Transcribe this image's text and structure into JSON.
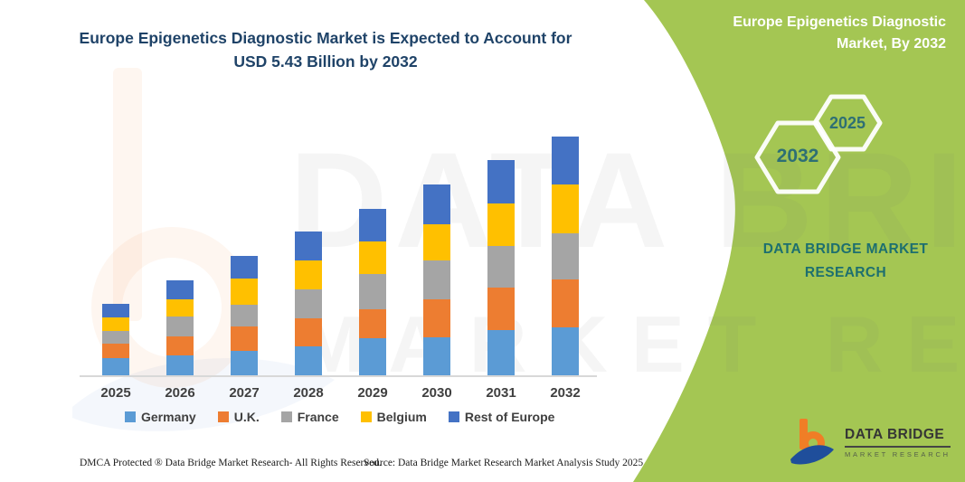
{
  "header": {
    "title_line1": "Europe Epigenetics Diagnostic Market is Expected to Account for",
    "title_line2": "USD 5.43 Billion by 2032",
    "panel_title_line1": "Europe Epigenetics Diagnostic",
    "panel_title_line2": "Market, By 2032"
  },
  "side_panel": {
    "hexagon_back_year": "2032",
    "hexagon_front_year": "2025",
    "brand_line1": "DATA BRIDGE MARKET",
    "brand_line2": "RESEARCH"
  },
  "watermark": {
    "line1": "DATA BRIDGE",
    "line2": "MARKET RESEARCH"
  },
  "logo": {
    "name": "DATA BRIDGE",
    "subtitle": "MARKET RESEARCH"
  },
  "footer": {
    "left": "DMCA Protected ® Data Bridge Market Research-  All Rights Reserved.",
    "right": "Source: Data Bridge Market Research  Market Analysis Study 2025"
  },
  "colors": {
    "panel_green": "#A4C653",
    "title_blue": "#1F4368",
    "brand_teal": "#1D6F6F",
    "hexagon_text_teal": "#2E6F74",
    "axis_text": "#3F3F3F",
    "axis_line": "#D8D8D8",
    "logo_orange": "#F07E26",
    "logo_blue": "#1F4E9B"
  },
  "chart_data": {
    "type": "bar",
    "stacked": true,
    "title": "Europe Epigenetics Diagnostic Market is Expected to Account for USD 5.43 Billion by 2032",
    "xlabel": "",
    "ylabel": "",
    "unit": "USD Billion (values estimated from bar heights; no y-axis shown)",
    "grid": false,
    "y_axis_visible": false,
    "legend_position": "bottom",
    "categories": [
      "2025",
      "2026",
      "2027",
      "2028",
      "2029",
      "2030",
      "2031",
      "2032"
    ],
    "series": [
      {
        "name": "Germany",
        "color": "#5B9BD5",
        "values": [
          0.39,
          0.45,
          0.56,
          0.66,
          0.84,
          0.86,
          1.03,
          1.09
        ]
      },
      {
        "name": "U.K.",
        "color": "#ED7D31",
        "values": [
          0.33,
          0.43,
          0.56,
          0.64,
          0.66,
          0.86,
          0.97,
          1.09
        ]
      },
      {
        "name": "France",
        "color": "#A5A5A5",
        "values": [
          0.29,
          0.45,
          0.49,
          0.66,
          0.8,
          0.88,
          0.95,
          1.05
        ]
      },
      {
        "name": "Belgium",
        "color": "#FFC000",
        "values": [
          0.31,
          0.39,
          0.6,
          0.66,
          0.74,
          0.82,
          0.97,
          1.11
        ]
      },
      {
        "name": "Rest of Europe",
        "color": "#4472C4",
        "values": [
          0.31,
          0.43,
          0.51,
          0.66,
          0.74,
          0.91,
          0.99,
          1.09
        ]
      }
    ],
    "totals": [
      1.63,
      2.15,
      2.72,
      3.28,
      3.78,
      4.33,
      4.91,
      5.43
    ],
    "highlight_total": {
      "year": "2032",
      "value_text": "USD 5.43 Billion"
    }
  }
}
